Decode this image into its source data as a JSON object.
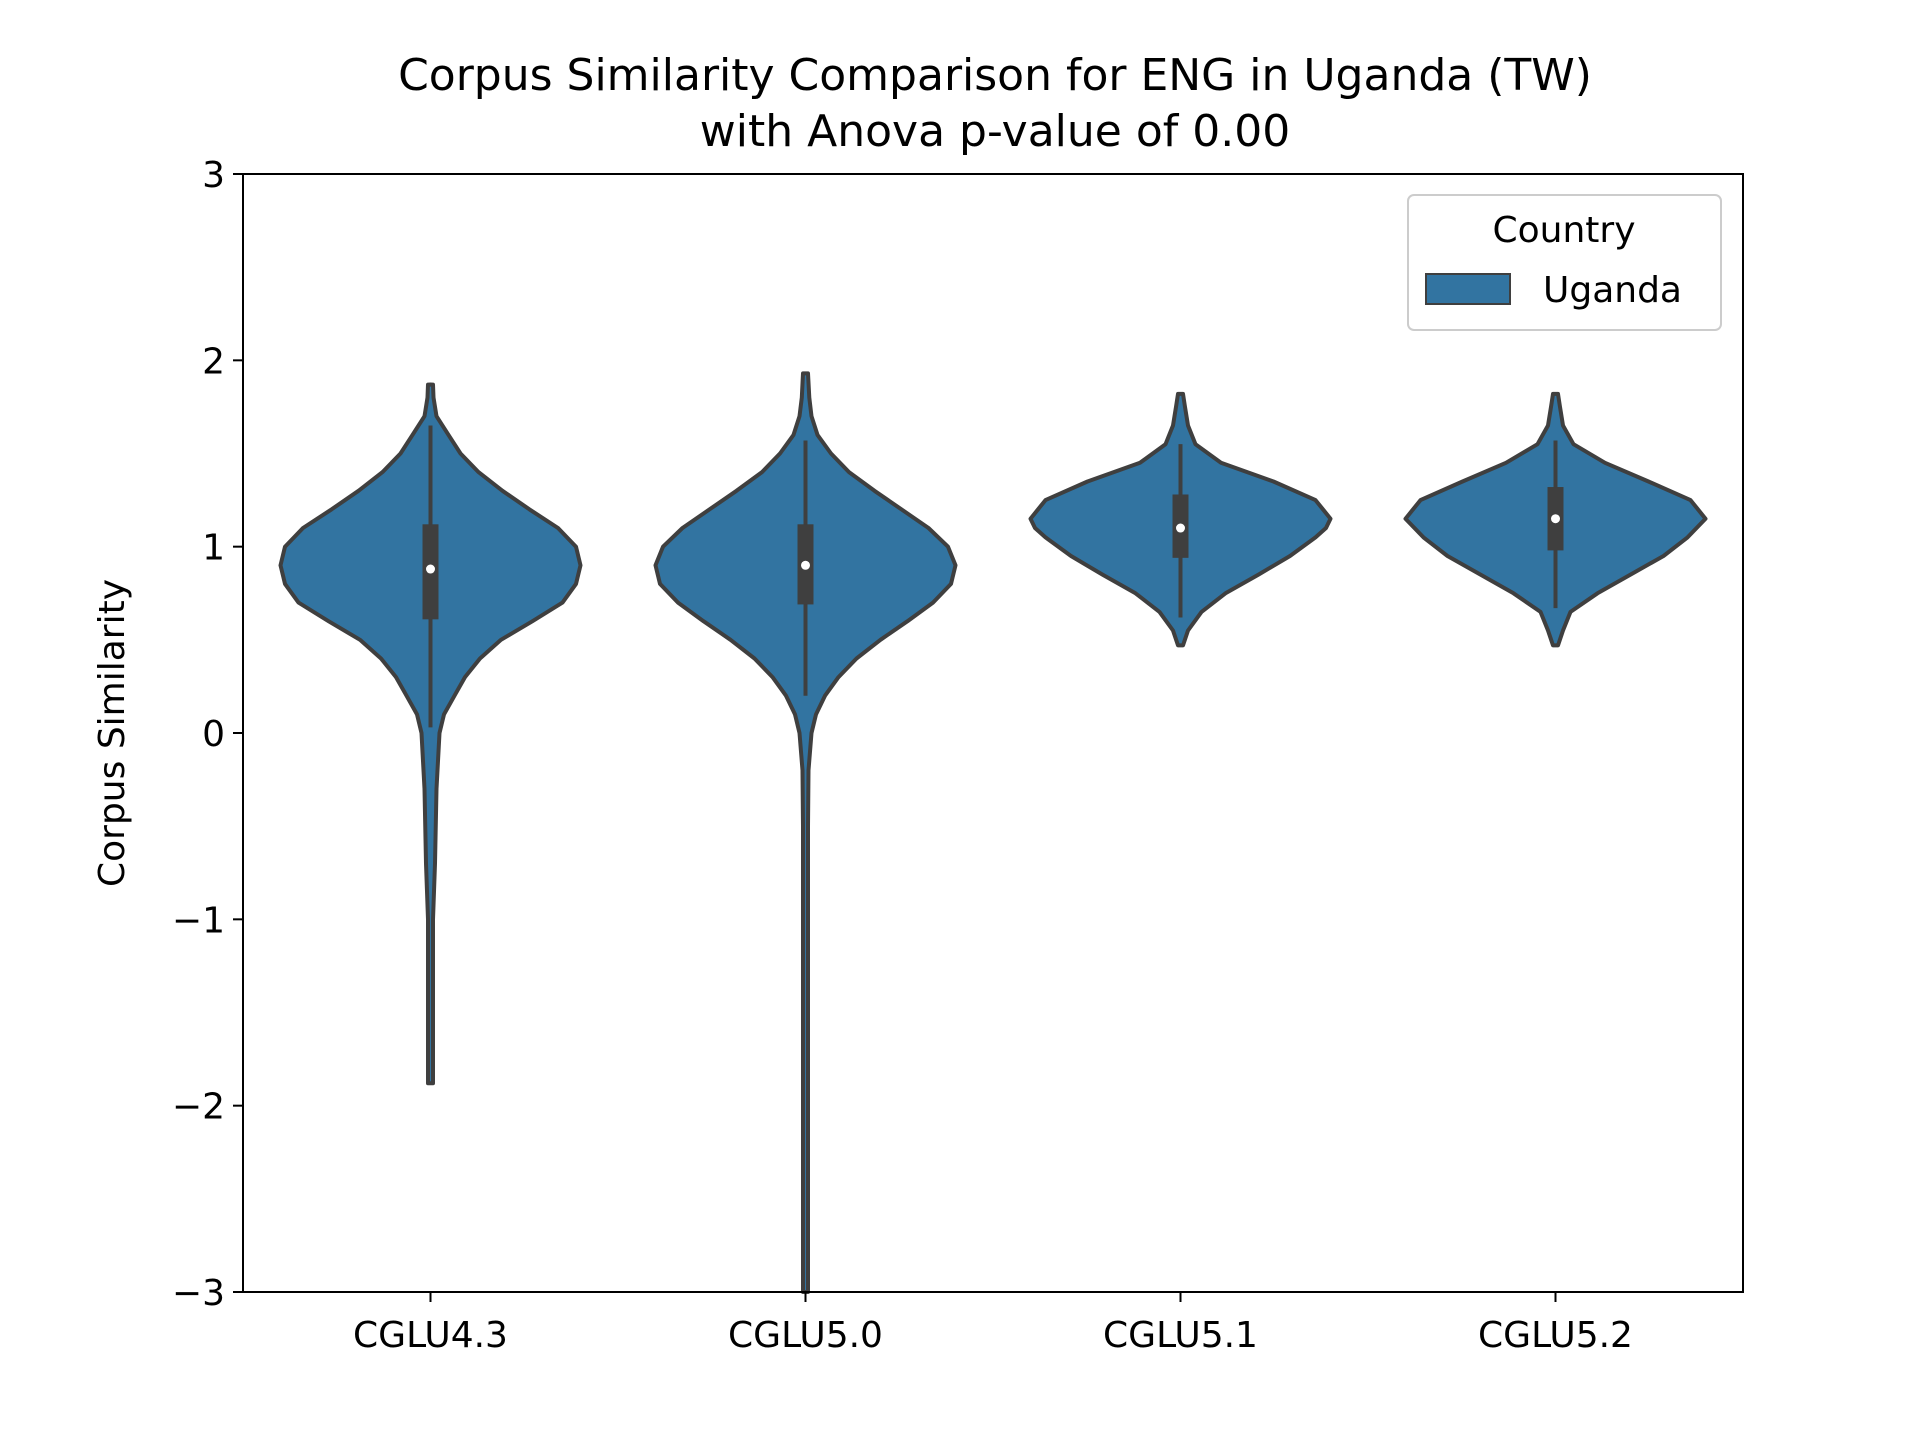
{
  "chart_data": {
    "type": "violin",
    "title": "Corpus Similarity Comparison for ENG in Uganda (TW)",
    "subtitle": "with Anova p-value of 0.00",
    "xlabel": "",
    "ylabel": "Corpus Similarity",
    "ylim": [
      -3,
      3
    ],
    "yticks": [
      -3,
      -2,
      -1,
      0,
      1,
      2,
      3
    ],
    "ytick_labels": [
      "−3",
      "−2",
      "−1",
      "0",
      "1",
      "2",
      "3"
    ],
    "categories": [
      "CGLU4.3",
      "CGLU5.0",
      "CGLU5.1",
      "CGLU5.2"
    ],
    "grid": false,
    "legend": {
      "title": "Country",
      "placement": "top-right",
      "entries": [
        {
          "name": "Uganda",
          "color": "#3274a1"
        }
      ]
    },
    "colors": {
      "violin_fill": "#3274a1",
      "edge": "#3f3f3f",
      "median": "#ffffff"
    },
    "series": [
      {
        "name": "Uganda",
        "violins": [
          {
            "category": "CGLU4.3",
            "min": -1.88,
            "q1": 0.61,
            "median": 0.88,
            "q3": 1.12,
            "max": 1.87,
            "whisker_low": 0.03,
            "whisker_high": 1.65,
            "density": [
              [
                -1.88,
                0.01
              ],
              [
                -1.5,
                0.012
              ],
              [
                -1.0,
                0.015
              ],
              [
                -0.7,
                0.03
              ],
              [
                -0.3,
                0.04
              ],
              [
                0.0,
                0.06
              ],
              [
                0.1,
                0.09
              ],
              [
                0.2,
                0.16
              ],
              [
                0.3,
                0.23
              ],
              [
                0.4,
                0.33
              ],
              [
                0.5,
                0.47
              ],
              [
                0.6,
                0.68
              ],
              [
                0.7,
                0.88
              ],
              [
                0.8,
                0.97
              ],
              [
                0.9,
                1.0
              ],
              [
                1.0,
                0.97
              ],
              [
                1.1,
                0.85
              ],
              [
                1.2,
                0.66
              ],
              [
                1.3,
                0.48
              ],
              [
                1.4,
                0.32
              ],
              [
                1.5,
                0.2
              ],
              [
                1.6,
                0.12
              ],
              [
                1.7,
                0.04
              ],
              [
                1.8,
                0.02
              ],
              [
                1.87,
                0.01
              ]
            ]
          },
          {
            "category": "CGLU5.0",
            "min": -3.0,
            "q1": 0.69,
            "median": 0.9,
            "q3": 1.12,
            "max": 1.93,
            "whisker_low": 0.2,
            "whisker_high": 1.57,
            "density": [
              [
                -3.0,
                0.015
              ],
              [
                -2.0,
                0.015
              ],
              [
                -1.0,
                0.015
              ],
              [
                -0.5,
                0.017
              ],
              [
                -0.2,
                0.02
              ],
              [
                0.0,
                0.04
              ],
              [
                0.1,
                0.07
              ],
              [
                0.2,
                0.13
              ],
              [
                0.3,
                0.22
              ],
              [
                0.4,
                0.34
              ],
              [
                0.5,
                0.5
              ],
              [
                0.6,
                0.68
              ],
              [
                0.7,
                0.85
              ],
              [
                0.8,
                0.97
              ],
              [
                0.9,
                1.0
              ],
              [
                1.0,
                0.95
              ],
              [
                1.1,
                0.82
              ],
              [
                1.2,
                0.64
              ],
              [
                1.3,
                0.46
              ],
              [
                1.4,
                0.29
              ],
              [
                1.5,
                0.17
              ],
              [
                1.6,
                0.08
              ],
              [
                1.7,
                0.04
              ],
              [
                1.8,
                0.025
              ],
              [
                1.93,
                0.01
              ]
            ]
          },
          {
            "category": "CGLU5.1",
            "min": 0.47,
            "q1": 0.94,
            "median": 1.1,
            "q3": 1.28,
            "max": 1.82,
            "whisker_low": 0.62,
            "whisker_high": 1.55,
            "density": [
              [
                0.47,
                0.01
              ],
              [
                0.55,
                0.05
              ],
              [
                0.65,
                0.14
              ],
              [
                0.75,
                0.3
              ],
              [
                0.85,
                0.52
              ],
              [
                0.95,
                0.73
              ],
              [
                1.05,
                0.9
              ],
              [
                1.1,
                0.97
              ],
              [
                1.15,
                1.0
              ],
              [
                1.25,
                0.9
              ],
              [
                1.35,
                0.62
              ],
              [
                1.45,
                0.27
              ],
              [
                1.55,
                0.1
              ],
              [
                1.65,
                0.05
              ],
              [
                1.75,
                0.03
              ],
              [
                1.82,
                0.01
              ]
            ]
          },
          {
            "category": "CGLU5.2",
            "min": 0.47,
            "q1": 0.98,
            "median": 1.15,
            "q3": 1.32,
            "max": 1.82,
            "whisker_low": 0.67,
            "whisker_high": 1.57,
            "density": [
              [
                0.47,
                0.01
              ],
              [
                0.55,
                0.05
              ],
              [
                0.65,
                0.1
              ],
              [
                0.75,
                0.28
              ],
              [
                0.85,
                0.5
              ],
              [
                0.95,
                0.72
              ],
              [
                1.05,
                0.88
              ],
              [
                1.15,
                1.0
              ],
              [
                1.25,
                0.9
              ],
              [
                1.35,
                0.62
              ],
              [
                1.45,
                0.33
              ],
              [
                1.55,
                0.12
              ],
              [
                1.65,
                0.05
              ],
              [
                1.75,
                0.03
              ],
              [
                1.82,
                0.01
              ]
            ]
          }
        ]
      }
    ]
  }
}
